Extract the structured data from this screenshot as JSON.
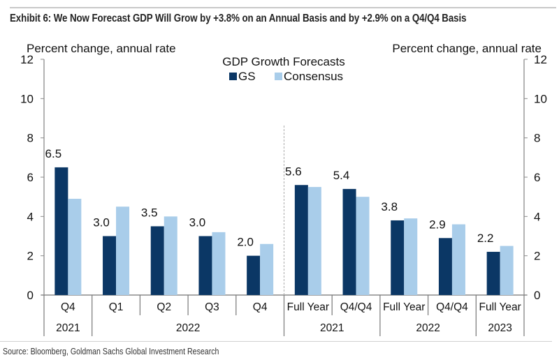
{
  "title": "Exhibit 6: We Now Forecast GDP Will Grow by +3.8% on an Annual Basis and by +2.9% on a Q4/Q4 Basis",
  "source": "Source: Bloomberg, Goldman Sachs Global Investment Research",
  "colors": {
    "gs": "#0b3765",
    "consensus": "#a9cdea",
    "axis": "#8a8a8a",
    "divider": "#aaaaaa"
  },
  "chart_data": {
    "type": "bar",
    "title": "GDP Growth Forecasts",
    "ylabel_left": "Percent change, annual rate",
    "ylabel_right": "Percent change, annual rate",
    "ylim": [
      0,
      12
    ],
    "yticks": [
      0,
      2,
      4,
      6,
      8,
      10,
      12
    ],
    "grid": false,
    "legend_position": "top-center",
    "categories": [
      "Q4",
      "Q1",
      "Q2",
      "Q3",
      "Q4",
      "Full Year",
      "Q4/Q4",
      "Full Year",
      "Q4/Q4",
      "Full Year"
    ],
    "category_groups": [
      {
        "label": "2021",
        "span": 1
      },
      {
        "label": "2022",
        "span": 4
      },
      {
        "label": "2021",
        "span": 2
      },
      {
        "label": "2022",
        "span": 2
      },
      {
        "label": "2023",
        "span": 1
      }
    ],
    "section_divider_after_index": 4,
    "series": [
      {
        "name": "GS",
        "values": [
          6.5,
          3.0,
          3.5,
          3.0,
          2.0,
          5.6,
          5.4,
          3.8,
          2.9,
          2.2
        ]
      },
      {
        "name": "Consensus",
        "values": [
          4.9,
          4.5,
          4.0,
          3.2,
          2.6,
          5.5,
          5.0,
          3.9,
          3.6,
          2.5
        ]
      }
    ],
    "data_labels": [
      "6.5",
      "3.0",
      "3.5",
      "3.0",
      "2.0",
      "5.6",
      "5.4",
      "3.8",
      "2.9",
      "2.2"
    ]
  }
}
